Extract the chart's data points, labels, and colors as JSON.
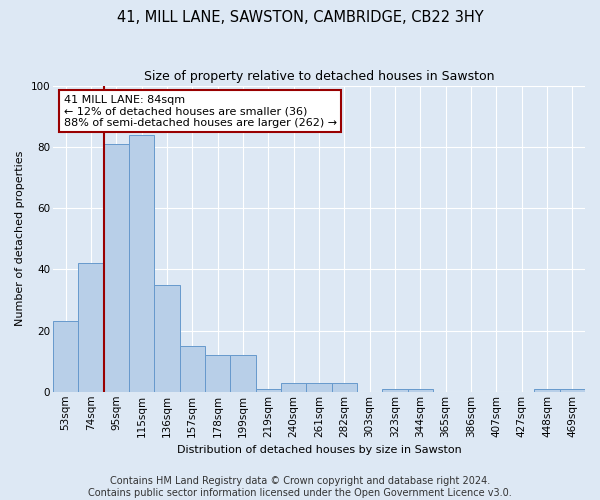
{
  "title": "41, MILL LANE, SAWSTON, CAMBRIDGE, CB22 3HY",
  "subtitle": "Size of property relative to detached houses in Sawston",
  "xlabel": "Distribution of detached houses by size in Sawston",
  "ylabel": "Number of detached properties",
  "footer_line1": "Contains HM Land Registry data © Crown copyright and database right 2024.",
  "footer_line2": "Contains public sector information licensed under the Open Government Licence v3.0.",
  "bin_labels": [
    "53sqm",
    "74sqm",
    "95sqm",
    "115sqm",
    "136sqm",
    "157sqm",
    "178sqm",
    "199sqm",
    "219sqm",
    "240sqm",
    "261sqm",
    "282sqm",
    "303sqm",
    "323sqm",
    "344sqm",
    "365sqm",
    "386sqm",
    "407sqm",
    "427sqm",
    "448sqm",
    "469sqm"
  ],
  "bar_values": [
    23,
    42,
    81,
    84,
    35,
    15,
    12,
    12,
    1,
    3,
    3,
    3,
    0,
    1,
    1,
    0,
    0,
    0,
    0,
    1,
    1
  ],
  "bar_color": "#b8cfe8",
  "bar_edge_color": "#6699cc",
  "property_line_x": 1.5,
  "annotation_text": "41 MILL LANE: 84sqm\n← 12% of detached houses are smaller (36)\n88% of semi-detached houses are larger (262) →",
  "red_line_color": "#990000",
  "ylim": [
    0,
    100
  ],
  "yticks": [
    0,
    20,
    40,
    60,
    80,
    100
  ],
  "background_color": "#dde8f4",
  "grid_color": "white",
  "title_fontsize": 10.5,
  "subtitle_fontsize": 9,
  "axis_label_fontsize": 8,
  "tick_fontsize": 7.5,
  "footer_fontsize": 7
}
